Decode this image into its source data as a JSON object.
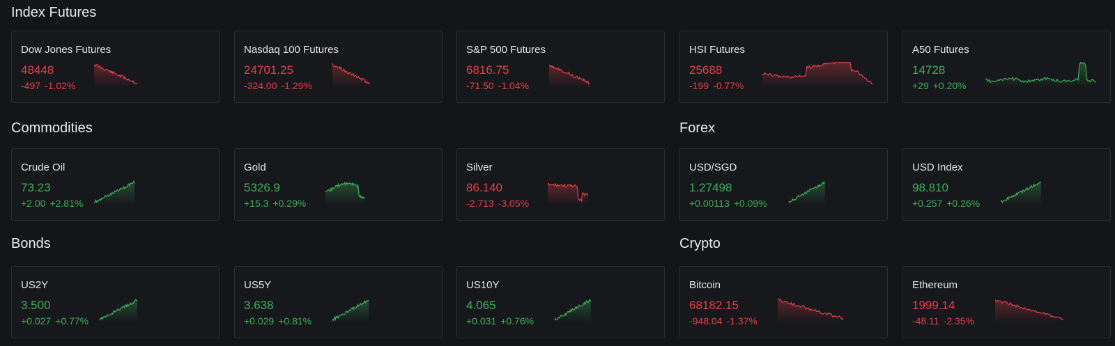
{
  "sections": {
    "index_futures": "Index Futures",
    "commodities": "Commodities",
    "forex": "Forex",
    "bonds": "Bonds",
    "crypto": "Crypto"
  },
  "colors": {
    "up": "#3fae5a",
    "down": "#e2404a",
    "background": "#141519",
    "card_border": "#2c2e34"
  },
  "cards": [
    {
      "id": "dow",
      "name": "Dow Jones Futures",
      "price": "48448",
      "change": "-497",
      "pct": "-1.02%",
      "dir": "down"
    },
    {
      "id": "nasdaq",
      "name": "Nasdaq 100 Futures",
      "price": "24701.25",
      "change": "-324.00",
      "pct": "-1.29%",
      "dir": "down"
    },
    {
      "id": "sp500",
      "name": "S&P 500 Futures",
      "price": "6816.75",
      "change": "-71.50",
      "pct": "-1.04%",
      "dir": "down"
    },
    {
      "id": "hsi",
      "name": "HSI Futures",
      "price": "25688",
      "change": "-199",
      "pct": "-0.77%",
      "dir": "down"
    },
    {
      "id": "a50",
      "name": "A50 Futures",
      "price": "14728",
      "change": "+29",
      "pct": "+0.20%",
      "dir": "up"
    },
    {
      "id": "crude",
      "name": "Crude Oil",
      "price": "73.23",
      "change": "+2.00",
      "pct": "+2.81%",
      "dir": "up"
    },
    {
      "id": "gold",
      "name": "Gold",
      "price": "5326.9",
      "change": "+15.3",
      "pct": "+0.29%",
      "dir": "up"
    },
    {
      "id": "silver",
      "name": "Silver",
      "price": "86.140",
      "change": "-2.713",
      "pct": "-3.05%",
      "dir": "down"
    },
    {
      "id": "usdsgd",
      "name": "USD/SGD",
      "price": "1.27498",
      "change": "+0.00113",
      "pct": "+0.09%",
      "dir": "up"
    },
    {
      "id": "usdindex",
      "name": "USD Index",
      "price": "98.810",
      "change": "+0.257",
      "pct": "+0.26%",
      "dir": "up"
    },
    {
      "id": "us2y",
      "name": "US2Y",
      "price": "3.500",
      "change": "+0.027",
      "pct": "+0.77%",
      "dir": "up"
    },
    {
      "id": "us5y",
      "name": "US5Y",
      "price": "3.638",
      "change": "+0.029",
      "pct": "+0.81%",
      "dir": "up"
    },
    {
      "id": "us10y",
      "name": "US10Y",
      "price": "4.065",
      "change": "+0.031",
      "pct": "+0.76%",
      "dir": "up"
    },
    {
      "id": "bitcoin",
      "name": "Bitcoin",
      "price": "68182.15",
      "change": "-948.04",
      "pct": "-1.37%",
      "dir": "down"
    },
    {
      "id": "ethereum",
      "name": "Ethereum",
      "price": "1999.14",
      "change": "-48.11",
      "pct": "-2.35%",
      "dir": "down"
    }
  ]
}
